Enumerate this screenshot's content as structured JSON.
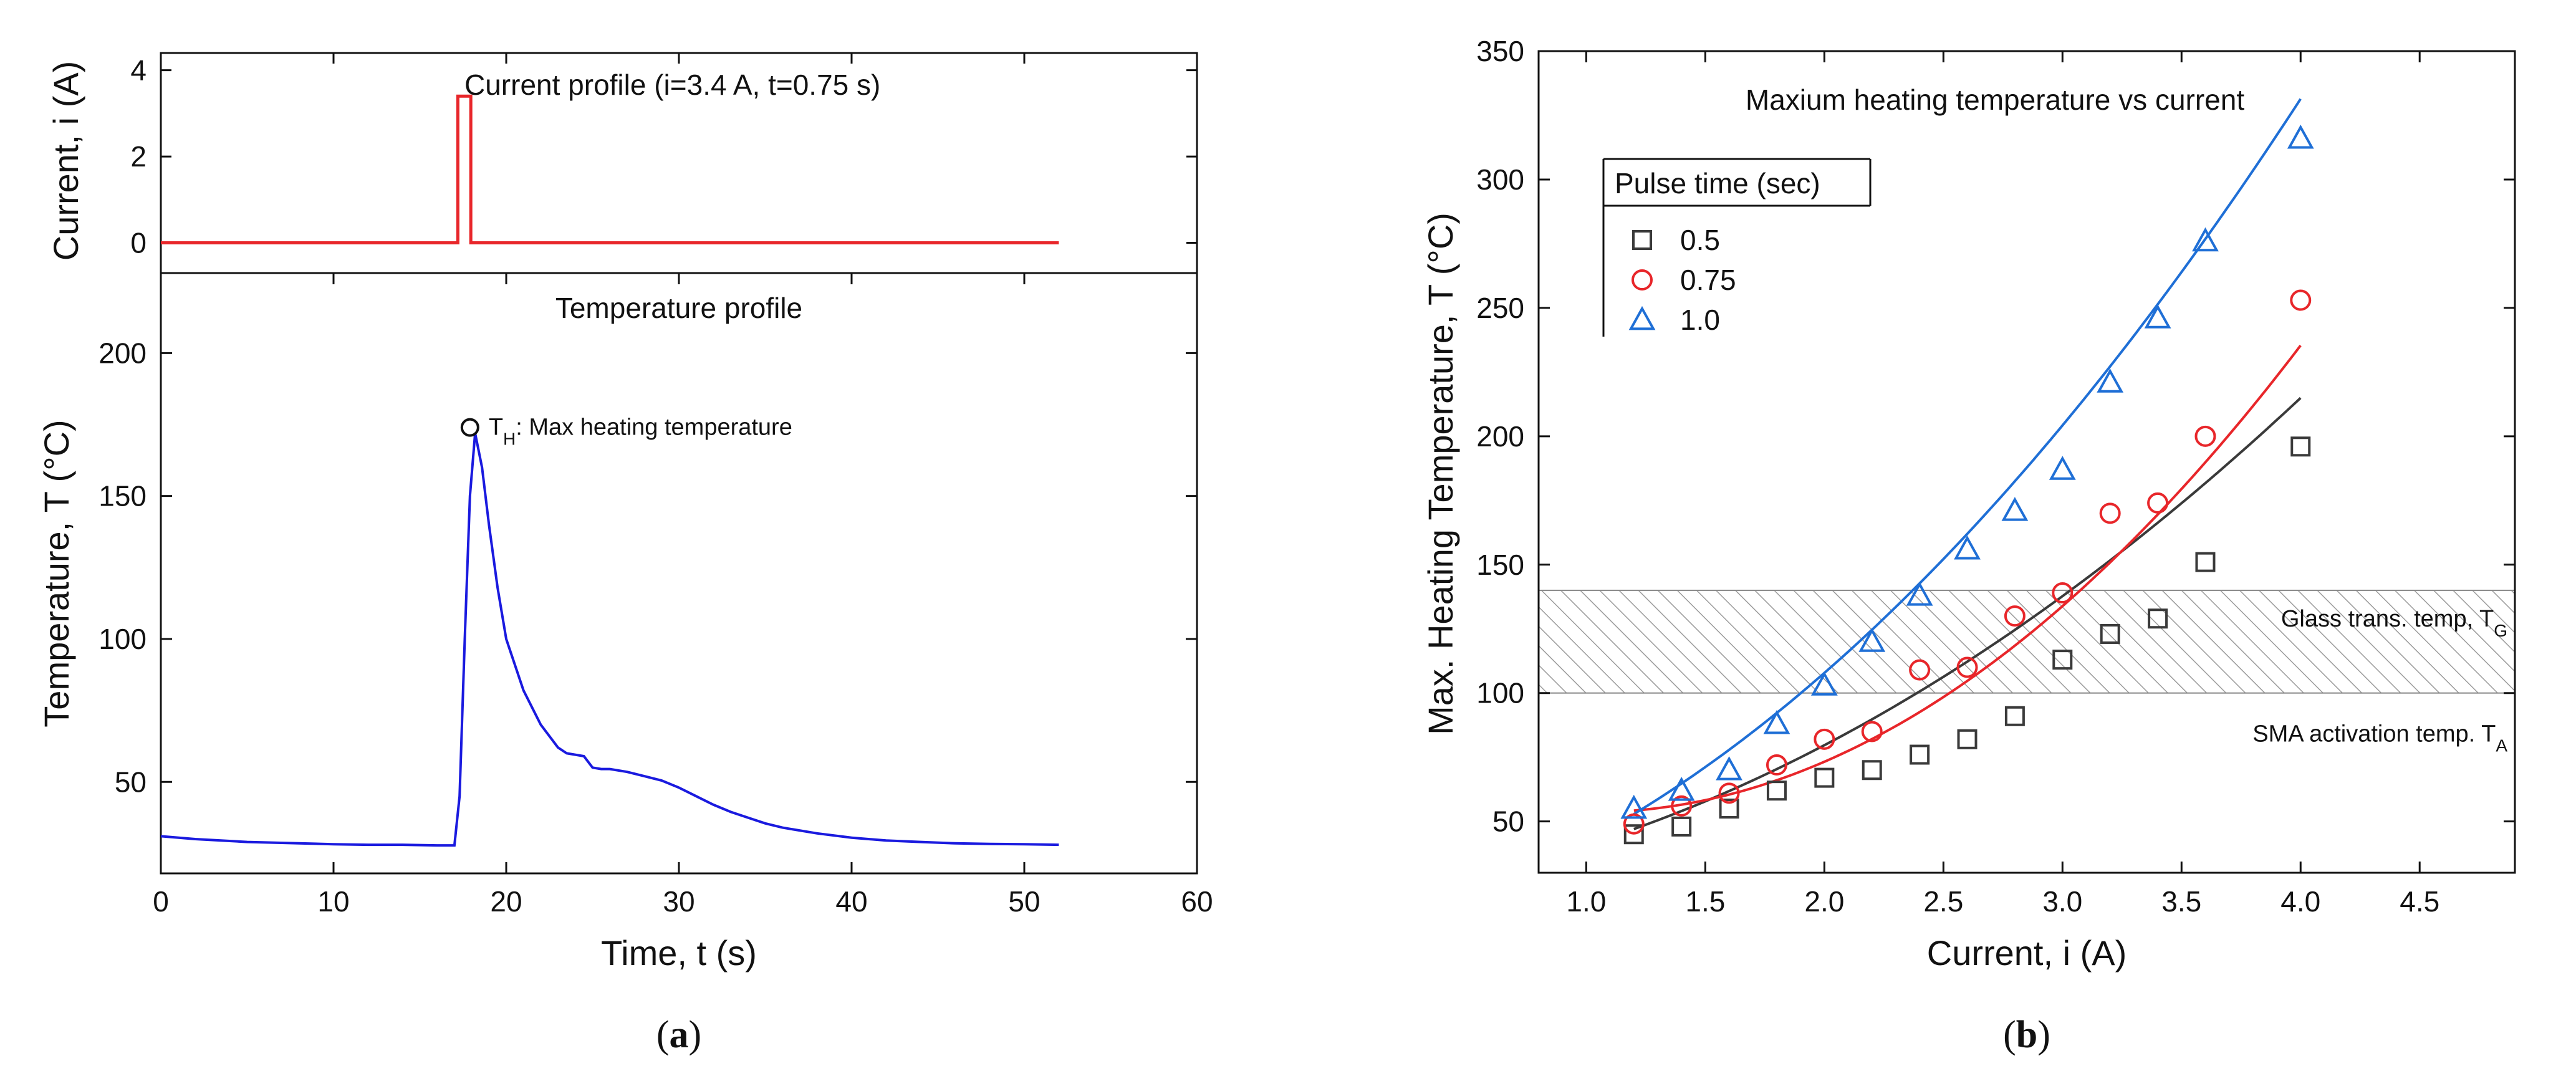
{
  "chart_data": [
    {
      "id": "a-top",
      "type": "line",
      "title": "Current profile (i=3.4 A, t=0.75 s)",
      "xlabel": "",
      "ylabel": "Current, i (A)",
      "xlim": [
        0,
        60
      ],
      "ylim": [
        -0.7,
        4.4
      ],
      "yticks": [
        0,
        2,
        4
      ],
      "yticklabels": [
        "0",
        "2",
        "4"
      ],
      "color": "#e8262a",
      "series": [
        {
          "name": "Current",
          "x": [
            0,
            17.2,
            17.2,
            17.95,
            17.95,
            52
          ],
          "y": [
            0,
            0,
            3.4,
            3.4,
            0,
            0
          ]
        }
      ]
    },
    {
      "id": "a-bottom",
      "type": "line",
      "title": "Temperature profile",
      "xlabel": "Time, t (s)",
      "ylabel": "Temperature, T (°C)",
      "xlim": [
        0,
        60
      ],
      "ylim": [
        18,
        228
      ],
      "xticks": [
        0,
        10,
        20,
        30,
        40,
        50,
        60
      ],
      "xticklabels": [
        "0",
        "10",
        "20",
        "30",
        "40",
        "50",
        "60"
      ],
      "yticks": [
        50,
        100,
        150,
        200
      ],
      "yticklabels": [
        "50",
        "100",
        "150",
        "200"
      ],
      "color": "#1a1adf",
      "series": [
        {
          "name": "Temperature",
          "x": [
            0,
            2,
            5,
            8,
            10,
            12,
            14,
            16,
            17,
            17.3,
            17.6,
            17.9,
            18.2,
            18.6,
            19,
            19.5,
            20,
            21,
            22,
            23,
            23.5,
            24.5,
            25,
            25.5,
            26,
            27,
            28,
            29,
            30,
            31,
            32,
            33,
            34,
            35,
            36,
            38,
            40,
            42,
            44,
            46,
            48,
            50,
            52
          ],
          "y": [
            31,
            30,
            29,
            28.5,
            28.2,
            28,
            28,
            27.8,
            27.8,
            45,
            100,
            150,
            172,
            160,
            140,
            118,
            100,
            82,
            70,
            62,
            60,
            59,
            55,
            54.5,
            54.5,
            53.5,
            52,
            50.5,
            48,
            45,
            42,
            39.5,
            37.5,
            35.5,
            34,
            32,
            30.5,
            29.5,
            29,
            28.5,
            28.3,
            28.2,
            28
          ]
        }
      ],
      "annotations": [
        {
          "text_main": "T",
          "text_sub": "H",
          "text_rest": ": Max heating temperature",
          "x": 17.9,
          "y": 174
        }
      ],
      "caption": "(a)"
    },
    {
      "id": "b",
      "type": "scatter",
      "title": "Maxium heating temperature vs current",
      "xlabel": "Current, i (A)",
      "ylabel": "Max. Heating Temperature, T (°C)",
      "xlim": [
        0.8,
        4.9
      ],
      "ylim": [
        30,
        350
      ],
      "xticks": [
        1.0,
        1.5,
        2.0,
        2.5,
        3.0,
        3.5,
        4.0,
        4.5
      ],
      "xticklabels": [
        "1.0",
        "1.5",
        "2.0",
        "2.5",
        "3.0",
        "3.5",
        "4.0",
        "4.5"
      ],
      "yticks": [
        50,
        100,
        150,
        200,
        250,
        300,
        350
      ],
      "yticklabels": [
        "50",
        "100",
        "150",
        "200",
        "250",
        "300",
        "350"
      ],
      "legend_title": "Pulse time (sec)",
      "legend_position": "top-left",
      "band": {
        "ymin": 100,
        "ymax": 140,
        "label_top": "Glass trans. temp, T",
        "label_top_sub": "G",
        "label_bottom": "SMA activation temp. T",
        "label_bottom_sub": "A"
      },
      "series": [
        {
          "name": "0.5",
          "marker": "square",
          "color": "#3a3a3a",
          "x": [
            1.2,
            1.4,
            1.6,
            1.8,
            2.0,
            2.2,
            2.4,
            2.6,
            2.8,
            3.0,
            3.2,
            3.4,
            3.6,
            4.0
          ],
          "y": [
            45,
            48,
            55,
            62,
            67,
            70,
            76,
            82,
            91,
            113,
            123,
            129,
            151,
            196
          ],
          "fit": [
            21.0,
            10.2,
            9.57
          ]
        },
        {
          "name": "0.75",
          "marker": "circle",
          "color": "#e8262a",
          "x": [
            1.2,
            1.4,
            1.6,
            1.8,
            2.0,
            2.2,
            2.4,
            2.6,
            2.8,
            3.0,
            3.2,
            3.4,
            3.6,
            4.0
          ],
          "y": [
            49,
            56,
            61,
            72,
            82,
            85,
            109,
            110,
            130,
            139,
            170,
            174,
            200,
            253
          ],
          "fit": [
            74.8,
            -41.7,
            20.46
          ]
        },
        {
          "name": "1.0",
          "marker": "triangle",
          "color": "#1f6fd6",
          "x": [
            1.2,
            1.4,
            1.6,
            1.8,
            2.0,
            2.2,
            2.4,
            2.6,
            2.8,
            3.0,
            3.2,
            3.4,
            3.6,
            4.0
          ],
          "y": [
            55,
            62,
            70,
            88,
            103,
            120,
            138,
            156,
            171,
            187,
            221,
            246,
            276,
            316
          ],
          "fit": [
            7.3,
            19.5,
            15.38
          ]
        }
      ],
      "caption": "(b)"
    }
  ]
}
